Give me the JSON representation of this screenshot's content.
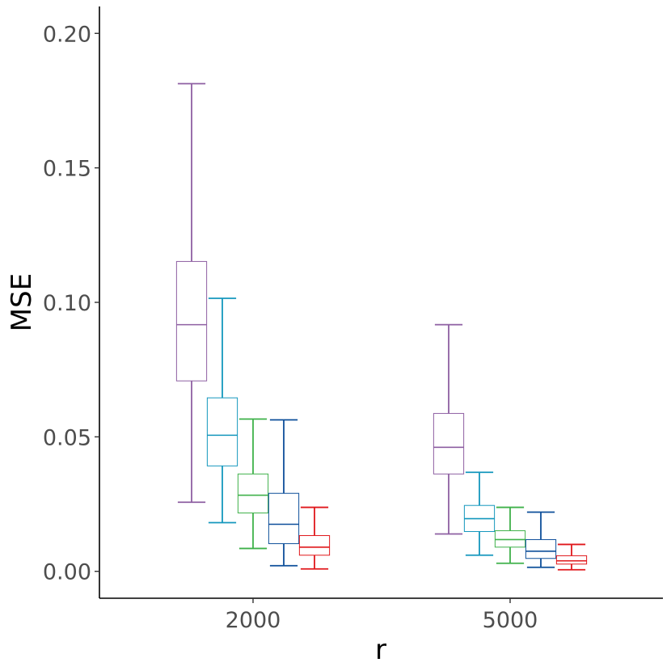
{
  "chart_data": {
    "type": "box",
    "xlabel": "r",
    "ylabel": "MSE",
    "categories": [
      "2000",
      "5000"
    ],
    "ylim": [
      -0.01,
      0.21
    ],
    "yticks": [
      0.0,
      0.05,
      0.1,
      0.15,
      0.2
    ],
    "ytick_labels": [
      "0.00",
      "0.05",
      "0.10",
      "0.15",
      "0.20"
    ],
    "grid": false,
    "legend": "none",
    "series": [
      {
        "color": "#8e5fa2",
        "boxes": [
          {
            "category": "2000",
            "min": 0.0257,
            "q1": 0.0708,
            "median": 0.0917,
            "q3": 0.1152,
            "max": 0.1813
          },
          {
            "category": "5000",
            "min": 0.0139,
            "q1": 0.0362,
            "median": 0.0461,
            "q3": 0.0587,
            "max": 0.0917
          }
        ]
      },
      {
        "color": "#1497bd",
        "boxes": [
          {
            "category": "2000",
            "min": 0.0181,
            "q1": 0.0392,
            "median": 0.0506,
            "q3": 0.0645,
            "max": 0.1015
          },
          {
            "category": "5000",
            "min": 0.006,
            "q1": 0.0148,
            "median": 0.0196,
            "q3": 0.0245,
            "max": 0.0368
          }
        ]
      },
      {
        "color": "#3fb14a",
        "boxes": [
          {
            "category": "2000",
            "min": 0.0085,
            "q1": 0.0217,
            "median": 0.0283,
            "q3": 0.0362,
            "max": 0.0566
          },
          {
            "category": "5000",
            "min": 0.003,
            "q1": 0.009,
            "median": 0.0118,
            "q3": 0.0151,
            "max": 0.0238
          }
        ]
      },
      {
        "color": "#0d4f9a",
        "boxes": [
          {
            "category": "2000",
            "min": 0.0021,
            "q1": 0.0103,
            "median": 0.0175,
            "q3": 0.029,
            "max": 0.0563
          },
          {
            "category": "5000",
            "min": 0.0015,
            "q1": 0.0048,
            "median": 0.0075,
            "q3": 0.0118,
            "max": 0.022
          }
        ]
      },
      {
        "color": "#e0171b",
        "boxes": [
          {
            "category": "2000",
            "min": 0.0009,
            "q1": 0.006,
            "median": 0.009,
            "q3": 0.0133,
            "max": 0.0238
          },
          {
            "category": "5000",
            "min": 0.0006,
            "q1": 0.0027,
            "median": 0.0039,
            "q3": 0.0058,
            "max": 0.01
          }
        ]
      }
    ]
  }
}
